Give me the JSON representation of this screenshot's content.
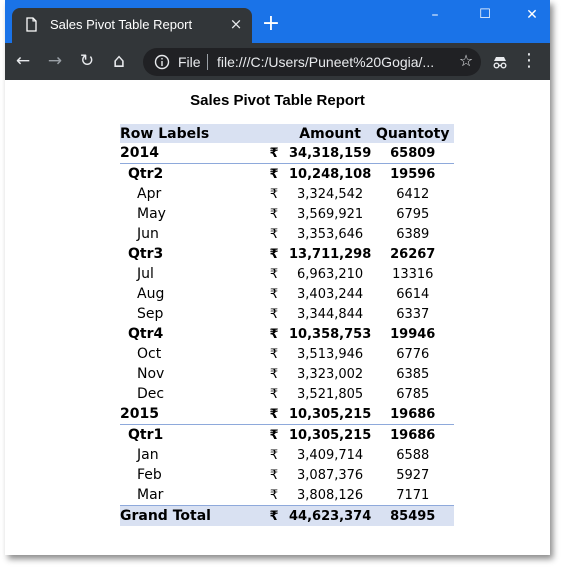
{
  "browser": {
    "tab_title": "Sales Pivot Table Report",
    "tab_close": "×",
    "new_tab": "+",
    "window_minimize": "–",
    "window_maximize": "☐",
    "window_close": "✕",
    "nav_back": "←",
    "nav_forward": "→",
    "nav_reload": "↻",
    "nav_home": "⌂",
    "scheme_label": "File",
    "url": "file:///C:/Users/Puneet%20Gogia/...",
    "star": "☆",
    "menu": "⋮",
    "accent_color": "#1a73e8",
    "toolbar_color": "#323639"
  },
  "report": {
    "title": "Sales Pivot Table Report",
    "headers": {
      "row_labels": "Row Labels",
      "amount": "Amount",
      "quantity": "Quantoty"
    },
    "currency_symbol": "₹",
    "header_fill": "#d9e1f2",
    "rows": [
      {
        "level": "year",
        "label": "2014",
        "amount": "34,318,159",
        "quantity": "65809"
      },
      {
        "level": "qtr",
        "label": "Qtr2",
        "amount": "10,248,108",
        "quantity": "19596"
      },
      {
        "level": "month",
        "label": "Apr",
        "amount": "3,324,542",
        "quantity": "6412"
      },
      {
        "level": "month",
        "label": "May",
        "amount": "3,569,921",
        "quantity": "6795"
      },
      {
        "level": "month",
        "label": "Jun",
        "amount": "3,353,646",
        "quantity": "6389"
      },
      {
        "level": "qtr",
        "label": "Qtr3",
        "amount": "13,711,298",
        "quantity": "26267"
      },
      {
        "level": "month",
        "label": "Jul",
        "amount": "6,963,210",
        "quantity": "13316"
      },
      {
        "level": "month",
        "label": "Aug",
        "amount": "3,403,244",
        "quantity": "6614"
      },
      {
        "level": "month",
        "label": "Sep",
        "amount": "3,344,844",
        "quantity": "6337"
      },
      {
        "level": "qtr",
        "label": "Qtr4",
        "amount": "10,358,753",
        "quantity": "19946"
      },
      {
        "level": "month",
        "label": "Oct",
        "amount": "3,513,946",
        "quantity": "6776"
      },
      {
        "level": "month",
        "label": "Nov",
        "amount": "3,323,002",
        "quantity": "6385"
      },
      {
        "level": "month",
        "label": "Dec",
        "amount": "3,521,805",
        "quantity": "6785"
      },
      {
        "level": "year",
        "label": "2015",
        "amount": "10,305,215",
        "quantity": "19686"
      },
      {
        "level": "qtr",
        "label": "Qtr1",
        "amount": "10,305,215",
        "quantity": "19686"
      },
      {
        "level": "month",
        "label": "Jan",
        "amount": "3,409,714",
        "quantity": "6588"
      },
      {
        "level": "month",
        "label": "Feb",
        "amount": "3,087,376",
        "quantity": "5927"
      },
      {
        "level": "month",
        "label": "Mar",
        "amount": "3,808,126",
        "quantity": "7171"
      }
    ],
    "grand_total": {
      "label": "Grand Total",
      "amount": "44,623,374",
      "quantity": "85495"
    }
  }
}
